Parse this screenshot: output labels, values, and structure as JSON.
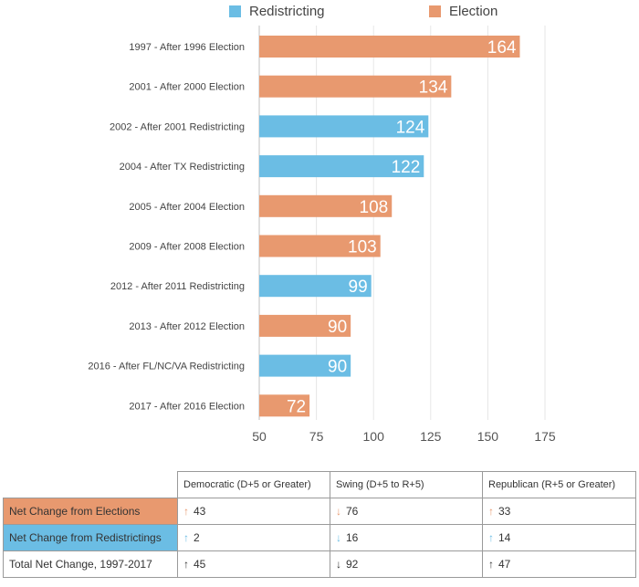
{
  "colors": {
    "redistricting": "#6bbde4",
    "election": "#e8996f",
    "neutral": "#333333",
    "gridline": "#e6e6e6",
    "axis": "#bfbfbf"
  },
  "legend": [
    {
      "label": "Redistricting",
      "color": "#6bbde4"
    },
    {
      "label": "Election",
      "color": "#e8996f"
    }
  ],
  "chart_data": {
    "type": "bar",
    "orientation": "horizontal",
    "title": "",
    "xlabel": "",
    "ylabel": "",
    "xlim": [
      50,
      175
    ],
    "xticks": [
      50,
      75,
      100,
      125,
      150,
      175
    ],
    "grid": true,
    "legend_position": "top",
    "categories": [
      "1997 - After 1996 Election",
      "2001 - After 2000 Election",
      "2002 - After 2001 Redistricting",
      "2004 - After TX Redistricting",
      "2005 - After 2004 Election",
      "2009 - After 2008 Election",
      "2012 - After 2011 Redistricting",
      "2013 - After 2012 Election",
      "2016 - After FL/NC/VA Redistricting",
      "2017 - After 2016 Election"
    ],
    "values": [
      164,
      134,
      124,
      122,
      108,
      103,
      99,
      90,
      90,
      72
    ],
    "types": [
      "Election",
      "Election",
      "Redistricting",
      "Redistricting",
      "Election",
      "Election",
      "Redistricting",
      "Election",
      "Redistricting",
      "Election"
    ]
  },
  "table": {
    "columns": [
      "Democratic (D+5 or Greater)",
      "Swing (D+5 to R+5)",
      "Republican (R+5 or Greater)"
    ],
    "rows": [
      {
        "label": "Net Change from Elections",
        "style": "election",
        "cells": [
          {
            "dir": "up",
            "value": "43"
          },
          {
            "dir": "down",
            "value": "76"
          },
          {
            "dir": "up",
            "value": "33"
          }
        ]
      },
      {
        "label": "Net Change from Redistrictings",
        "style": "redistricting",
        "cells": [
          {
            "dir": "up",
            "value": "2"
          },
          {
            "dir": "down",
            "value": "16"
          },
          {
            "dir": "up",
            "value": "14"
          }
        ]
      },
      {
        "label": "Total Net Change, 1997-2017",
        "style": "total",
        "cells": [
          {
            "dir": "up",
            "value": "45"
          },
          {
            "dir": "down",
            "value": "92"
          },
          {
            "dir": "up",
            "value": "47"
          }
        ]
      }
    ]
  }
}
